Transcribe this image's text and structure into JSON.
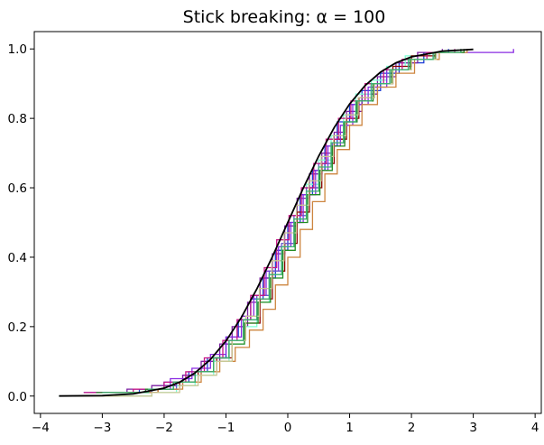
{
  "chart_data": {
    "type": "line",
    "title": "Stick breaking: α = 100",
    "xlabel": "",
    "ylabel": "",
    "xlim": [
      -4.1,
      4.1
    ],
    "ylim": [
      -0.05,
      1.05
    ],
    "x_ticks": [
      -4,
      -3,
      -2,
      -1,
      0,
      1,
      2,
      3,
      4
    ],
    "x_tick_labels": [
      "−4",
      "−3",
      "−2",
      "−1",
      "0",
      "1",
      "2",
      "3",
      "4"
    ],
    "y_ticks": [
      0.0,
      0.2,
      0.4,
      0.6,
      0.8,
      1.0
    ],
    "y_tick_labels": [
      "0.0",
      "0.2",
      "0.4",
      "0.6",
      "0.8",
      "1.0"
    ],
    "grid": false,
    "legend": "none",
    "reference_curve": {
      "description": "standard normal CDF",
      "color": "#000000",
      "x": [
        -3.7,
        -3.0,
        -2.5,
        -2.0,
        -1.75,
        -1.5,
        -1.25,
        -1.0,
        -0.75,
        -0.5,
        -0.25,
        0.0,
        0.25,
        0.5,
        0.75,
        1.0,
        1.25,
        1.5,
        1.75,
        2.0,
        2.5,
        3.0
      ],
      "values": [
        0.0001,
        0.0013,
        0.0062,
        0.0228,
        0.0401,
        0.0668,
        0.1056,
        0.1587,
        0.2266,
        0.3085,
        0.4013,
        0.5,
        0.5987,
        0.6915,
        0.7734,
        0.8413,
        0.8944,
        0.9332,
        0.9599,
        0.9772,
        0.9938,
        0.9987
      ]
    },
    "series_style": "step",
    "series": [
      {
        "color": "#1f3fd6",
        "x": [
          -3.3,
          -2.4,
          -2.0,
          -1.6,
          -1.3,
          -1.0,
          -0.8,
          -0.6,
          -0.4,
          -0.2,
          0.0,
          0.2,
          0.4,
          0.6,
          0.8,
          1.0,
          1.2,
          1.5,
          1.8,
          2.2,
          2.6
        ],
        "values": [
          0.01,
          0.02,
          0.04,
          0.07,
          0.11,
          0.17,
          0.22,
          0.28,
          0.34,
          0.42,
          0.5,
          0.58,
          0.65,
          0.72,
          0.79,
          0.84,
          0.88,
          0.93,
          0.96,
          0.99,
          1.0
        ]
      },
      {
        "color": "#7b1fa2",
        "x": [
          -3.1,
          -2.6,
          -2.2,
          -1.7,
          -1.4,
          -1.1,
          -0.9,
          -0.65,
          -0.45,
          -0.25,
          -0.05,
          0.15,
          0.35,
          0.55,
          0.75,
          0.95,
          1.2,
          1.45,
          1.75,
          2.1,
          2.5
        ],
        "values": [
          0.01,
          0.02,
          0.03,
          0.06,
          0.1,
          0.15,
          0.2,
          0.27,
          0.34,
          0.41,
          0.49,
          0.57,
          0.64,
          0.7,
          0.76,
          0.82,
          0.87,
          0.92,
          0.96,
          0.99,
          1.0
        ]
      },
      {
        "color": "#7fffd4",
        "x": [
          -3.7,
          -2.2,
          -1.8,
          -1.5,
          -1.2,
          -0.95,
          -0.7,
          -0.5,
          -0.3,
          -0.1,
          0.1,
          0.3,
          0.5,
          0.7,
          0.9,
          1.1,
          1.35,
          1.6,
          1.9,
          2.3,
          2.7
        ],
        "values": [
          0.0,
          0.01,
          0.03,
          0.06,
          0.1,
          0.15,
          0.2,
          0.27,
          0.35,
          0.43,
          0.52,
          0.61,
          0.68,
          0.75,
          0.81,
          0.87,
          0.91,
          0.95,
          0.98,
          0.99,
          1.0
        ]
      },
      {
        "color": "#8b0000",
        "x": [
          -3.0,
          -2.1,
          -1.75,
          -1.45,
          -1.15,
          -0.9,
          -0.7,
          -0.45,
          -0.25,
          -0.05,
          0.15,
          0.35,
          0.55,
          0.75,
          0.95,
          1.15,
          1.4,
          1.7,
          2.0,
          2.4,
          2.8
        ],
        "values": [
          0.01,
          0.02,
          0.04,
          0.07,
          0.11,
          0.16,
          0.21,
          0.28,
          0.36,
          0.44,
          0.53,
          0.6,
          0.67,
          0.74,
          0.8,
          0.86,
          0.9,
          0.95,
          0.98,
          0.99,
          1.0
        ]
      },
      {
        "color": "#8a2be2",
        "x": [
          -3.2,
          -2.3,
          -1.9,
          -1.55,
          -1.25,
          -1.0,
          -0.75,
          -0.55,
          -0.35,
          -0.15,
          0.05,
          0.25,
          0.45,
          0.65,
          0.85,
          1.05,
          1.3,
          1.6,
          1.95,
          2.4,
          3.65
        ],
        "values": [
          0.01,
          0.02,
          0.05,
          0.08,
          0.12,
          0.17,
          0.23,
          0.29,
          0.36,
          0.43,
          0.5,
          0.58,
          0.65,
          0.72,
          0.78,
          0.84,
          0.89,
          0.94,
          0.97,
          0.99,
          1.0
        ]
      },
      {
        "color": "#6a5acd",
        "x": [
          -3.0,
          -2.2,
          -1.8,
          -1.5,
          -1.2,
          -0.95,
          -0.72,
          -0.5,
          -0.3,
          -0.1,
          0.1,
          0.3,
          0.5,
          0.72,
          0.92,
          1.12,
          1.35,
          1.65,
          1.95,
          2.35,
          2.8
        ],
        "values": [
          0.01,
          0.02,
          0.04,
          0.07,
          0.11,
          0.16,
          0.22,
          0.29,
          0.36,
          0.44,
          0.52,
          0.6,
          0.67,
          0.73,
          0.79,
          0.85,
          0.9,
          0.94,
          0.97,
          0.99,
          1.0
        ]
      },
      {
        "color": "#c71585",
        "x": [
          -3.3,
          -2.5,
          -2.0,
          -1.65,
          -1.35,
          -1.05,
          -0.82,
          -0.6,
          -0.38,
          -0.18,
          0.02,
          0.22,
          0.42,
          0.62,
          0.82,
          1.02,
          1.25,
          1.55,
          1.85,
          2.25,
          2.7
        ],
        "values": [
          0.01,
          0.02,
          0.04,
          0.07,
          0.11,
          0.16,
          0.22,
          0.29,
          0.37,
          0.45,
          0.52,
          0.6,
          0.67,
          0.74,
          0.8,
          0.85,
          0.9,
          0.94,
          0.97,
          0.99,
          1.0
        ]
      },
      {
        "color": "#cd853f",
        "x": [
          -2.9,
          -2.1,
          -1.7,
          -1.4,
          -1.1,
          -0.85,
          -0.62,
          -0.4,
          -0.2,
          0.0,
          0.2,
          0.4,
          0.6,
          0.8,
          1.0,
          1.2,
          1.45,
          1.75,
          2.05,
          2.45,
          2.9
        ],
        "values": [
          0.01,
          0.02,
          0.04,
          0.07,
          0.1,
          0.14,
          0.19,
          0.25,
          0.32,
          0.4,
          0.48,
          0.56,
          0.64,
          0.71,
          0.78,
          0.84,
          0.89,
          0.93,
          0.97,
          0.99,
          1.0
        ]
      },
      {
        "color": "#228b22",
        "x": [
          -3.1,
          -2.3,
          -1.85,
          -1.5,
          -1.2,
          -0.95,
          -0.7,
          -0.48,
          -0.28,
          -0.08,
          0.12,
          0.32,
          0.52,
          0.72,
          0.92,
          1.12,
          1.38,
          1.68,
          1.98,
          2.38,
          2.85
        ],
        "values": [
          0.01,
          0.02,
          0.04,
          0.07,
          0.11,
          0.15,
          0.21,
          0.27,
          0.34,
          0.42,
          0.5,
          0.58,
          0.65,
          0.72,
          0.79,
          0.85,
          0.9,
          0.94,
          0.97,
          0.99,
          1.0
        ]
      },
      {
        "color": "#c8c896",
        "x": [
          -3.5,
          -2.2,
          -1.75,
          -1.45,
          -1.15,
          -0.9,
          -0.68,
          -0.46,
          -0.26,
          -0.06,
          0.14,
          0.34,
          0.54,
          0.74,
          0.94,
          1.14,
          1.4,
          1.7,
          2.0,
          2.4,
          2.8
        ],
        "values": [
          0.0,
          0.01,
          0.03,
          0.06,
          0.1,
          0.16,
          0.23,
          0.31,
          0.39,
          0.47,
          0.55,
          0.62,
          0.69,
          0.75,
          0.81,
          0.86,
          0.9,
          0.94,
          0.97,
          0.99,
          1.0
        ]
      },
      {
        "color": "#3cb371",
        "x": [
          -3.0,
          -2.25,
          -1.85,
          -1.5,
          -1.2,
          -0.95,
          -0.72,
          -0.5,
          -0.3,
          -0.1,
          0.1,
          0.3,
          0.5,
          0.7,
          0.9,
          1.1,
          1.35,
          1.65,
          1.95,
          2.35,
          2.8
        ],
        "values": [
          0.01,
          0.02,
          0.04,
          0.07,
          0.11,
          0.16,
          0.22,
          0.28,
          0.35,
          0.43,
          0.51,
          0.59,
          0.66,
          0.73,
          0.79,
          0.85,
          0.9,
          0.94,
          0.97,
          0.99,
          1.0
        ]
      }
    ]
  }
}
